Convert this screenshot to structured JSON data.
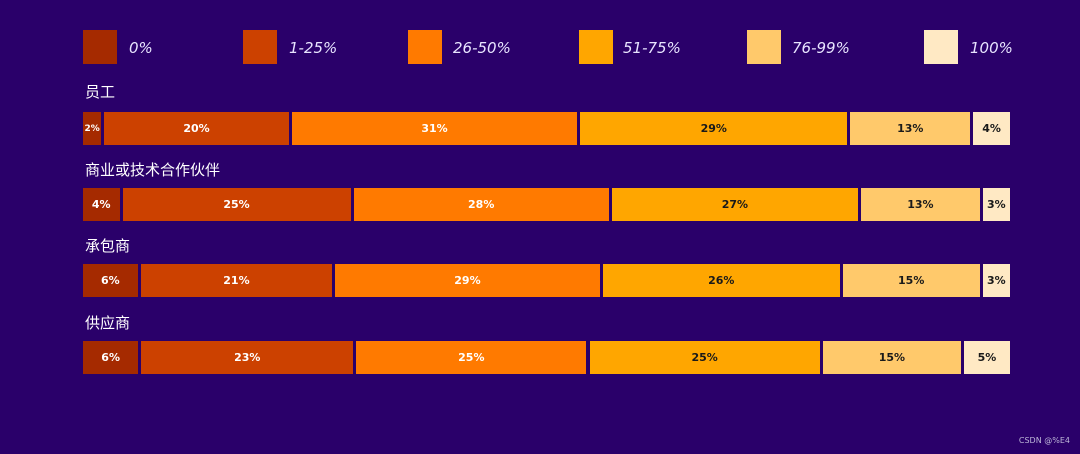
{
  "chart_data": {
    "type": "bar",
    "orientation": "horizontal",
    "stacked": true,
    "title": "",
    "xlabel": "",
    "ylabel": "",
    "xlim": [
      0,
      100
    ],
    "legend_position": "top",
    "grid": false,
    "categories": [
      "员工",
      "商业或技术合作伙伴",
      "承包商",
      "供应商"
    ],
    "series": [
      {
        "name": "0%",
        "color": "#a52a00",
        "label_color": "#ffffff",
        "values": [
          2,
          4,
          6,
          6
        ]
      },
      {
        "name": "1-25%",
        "color": "#cc4100",
        "label_color": "#ffffff",
        "values": [
          20,
          25,
          21,
          23
        ]
      },
      {
        "name": "26-50%",
        "color": "#ff7a00",
        "label_color": "#ffffff",
        "values": [
          31,
          28,
          29,
          25
        ]
      },
      {
        "name": "51-75%",
        "color": "#ffa600",
        "label_color": "#1a1a1a",
        "values": [
          29,
          27,
          26,
          25
        ]
      },
      {
        "name": "76-99%",
        "color": "#ffc96b",
        "label_color": "#1a1a1a",
        "values": [
          13,
          13,
          15,
          15
        ]
      },
      {
        "name": "100%",
        "color": "#ffe9c4",
        "label_color": "#1a1a1a",
        "values": [
          4,
          3,
          3,
          5
        ]
      }
    ],
    "value_labels": [
      [
        "2%",
        "20%",
        "31%",
        "29%",
        "13%",
        "4%"
      ],
      [
        "4%",
        "25%",
        "28%",
        "27%",
        "13%",
        "3%"
      ],
      [
        "6%",
        "21%",
        "29%",
        "26%",
        "15%",
        "3%"
      ],
      [
        "6%",
        "23%",
        "25%",
        "25%",
        "15%",
        "5%"
      ]
    ]
  },
  "watermark": "CSDN @%E4",
  "colors": {
    "background": "#2a006a",
    "legend_text": "#e8e4ff",
    "row_label_text": "#ffffff"
  }
}
